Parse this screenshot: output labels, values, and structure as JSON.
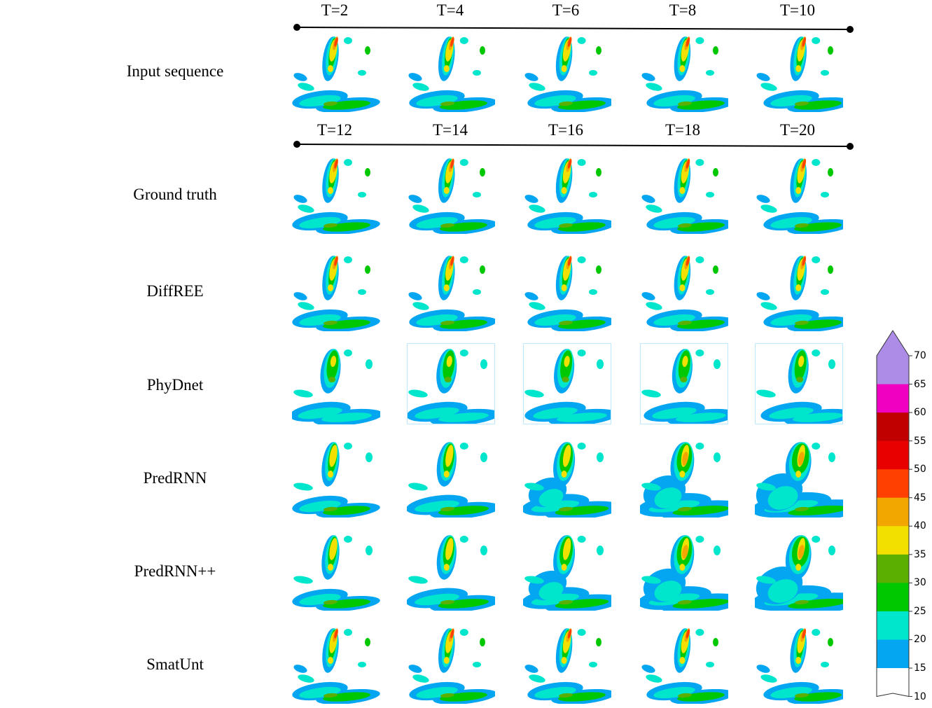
{
  "input_header": {
    "times": [
      "T=2",
      "T=4",
      "T=6",
      "T=8",
      "T=10"
    ]
  },
  "output_header": {
    "times": [
      "T=12",
      "T=14",
      "T=16",
      "T=18",
      "T=20"
    ]
  },
  "rows": [
    {
      "label": "Input sequence",
      "style": "input"
    },
    {
      "label": "Ground truth",
      "style": "truth"
    },
    {
      "label": "DiffREE",
      "style": "truth"
    },
    {
      "label": "PhyDnet",
      "style": "blurry"
    },
    {
      "label": "PredRNN",
      "style": "smooth"
    },
    {
      "label": "PredRNN++",
      "style": "smooth"
    },
    {
      "label": "SmatUnt",
      "style": "sharp"
    }
  ],
  "colorbar": {
    "levels": [
      {
        "range": [
          10,
          15
        ],
        "color": "#ffffff"
      },
      {
        "range": [
          15,
          20
        ],
        "color": "#04a6f2"
      },
      {
        "range": [
          20,
          25
        ],
        "color": "#00e6cc"
      },
      {
        "range": [
          25,
          30
        ],
        "color": "#00c800"
      },
      {
        "range": [
          30,
          35
        ],
        "color": "#5aaf00"
      },
      {
        "range": [
          35,
          40
        ],
        "color": "#f2e000"
      },
      {
        "range": [
          40,
          45
        ],
        "color": "#f2a600"
      },
      {
        "range": [
          45,
          50
        ],
        "color": "#ff4000"
      },
      {
        "range": [
          50,
          55
        ],
        "color": "#e80000"
      },
      {
        "range": [
          55,
          60
        ],
        "color": "#c00000"
      },
      {
        "range": [
          60,
          65
        ],
        "color": "#f000c0"
      },
      {
        "range": [
          65,
          70
        ],
        "color": "#ac8ce6"
      }
    ],
    "ticks": [
      "10",
      "15",
      "20",
      "25",
      "30",
      "35",
      "40",
      "45",
      "50",
      "55",
      "60",
      "65",
      "70"
    ]
  }
}
